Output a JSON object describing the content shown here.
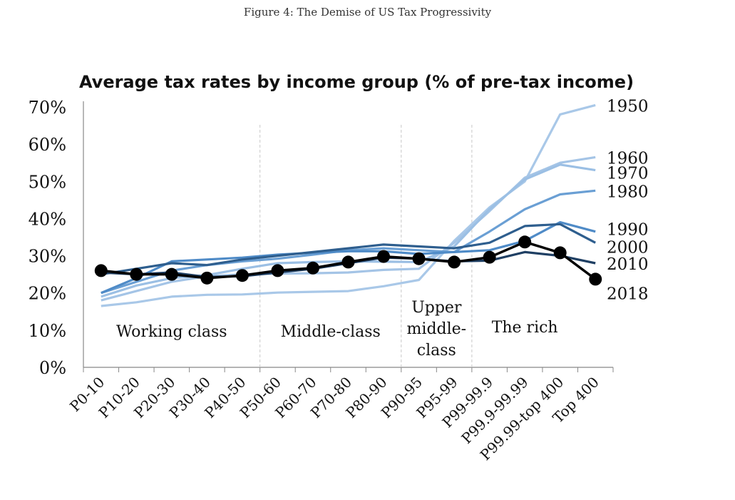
{
  "figure_caption": "Figure 4: The Demise of US Tax Progressivity",
  "chart_data": {
    "type": "line",
    "title": "Average tax rates by income group (% of pre-tax income)",
    "xlabel": "",
    "ylabel": "",
    "ylim": [
      0,
      70
    ],
    "yticks": [
      "0%",
      "10%",
      "20%",
      "30%",
      "40%",
      "50%",
      "60%",
      "70%"
    ],
    "categories": [
      "P0-10",
      "P10-20",
      "P20-30",
      "P30-40",
      "P40-50",
      "P50-60",
      "P60-70",
      "P70-80",
      "P80-90",
      "P90-95",
      "P95-99",
      "P99-99.9",
      "P99.9-99.99",
      "P99.99-top 400",
      "Top 400"
    ],
    "group_labels": [
      {
        "text": "Working class",
        "lines": [
          "Working class"
        ],
        "center_index": 2
      },
      {
        "text": "Middle-class",
        "lines": [
          "Middle-class"
        ],
        "center_index": 6.5
      },
      {
        "text": "Upper middle-class",
        "lines": [
          "Upper",
          "middle-",
          "class"
        ],
        "center_index": 9.5
      },
      {
        "text": "The rich",
        "lines": [
          "The rich"
        ],
        "center_index": 12
      }
    ],
    "dividers_after_index": [
      4.5,
      8.5,
      10.5
    ],
    "grid": false,
    "series": [
      {
        "name": "1950",
        "color": "#a9c8e8",
        "values": [
          16.5,
          17.5,
          19,
          19.5,
          19.6,
          20.1,
          20.3,
          20.5,
          21.8,
          23.5,
          34,
          43,
          50,
          68,
          70.5
        ]
      },
      {
        "name": "1960",
        "color": "#a4c4e6",
        "values": [
          18,
          20.5,
          23,
          24.5,
          25,
          25.2,
          25.3,
          25.5,
          26.2,
          26.5,
          33.5,
          42,
          51,
          55,
          56.5
        ]
      },
      {
        "name": "1970",
        "color": "#9bbfe4",
        "values": [
          19,
          22,
          24,
          24.8,
          26.5,
          28,
          28.3,
          28.5,
          28.4,
          28.3,
          32.5,
          42.5,
          50.5,
          54.5,
          53
        ]
      },
      {
        "name": "1980",
        "color": "#6a9fd4",
        "values": [
          20,
          23,
          26,
          27.5,
          28.5,
          29.2,
          30.3,
          31.5,
          32,
          31.5,
          31,
          36.5,
          42.5,
          46.5,
          47.5
        ]
      },
      {
        "name": "1990",
        "color": "#4f8bc7",
        "values": [
          20,
          24,
          28.5,
          29,
          29.5,
          30.3,
          30.8,
          31.2,
          31.2,
          30.5,
          31,
          31.5,
          34,
          39,
          36.5
        ]
      },
      {
        "name": "2000",
        "color": "#2e5e8e",
        "values": [
          25,
          26.5,
          28,
          27.5,
          29,
          30,
          31,
          32,
          33,
          32.5,
          32,
          33.5,
          38,
          38.5,
          33.5
        ]
      },
      {
        "name": "2010",
        "color": "#1f3f63",
        "values": [
          25.5,
          25,
          25.5,
          24.3,
          24.5,
          25.5,
          26.5,
          28,
          29.5,
          29.2,
          28.5,
          28.7,
          31,
          30,
          28
        ]
      },
      {
        "name": "2018",
        "color": "#000000",
        "marker": true,
        "values": [
          26,
          25,
          25,
          24,
          24.7,
          26,
          26.7,
          28.3,
          29.8,
          29.2,
          28.3,
          29.6,
          33.7,
          30.8,
          23.7
        ]
      }
    ]
  }
}
